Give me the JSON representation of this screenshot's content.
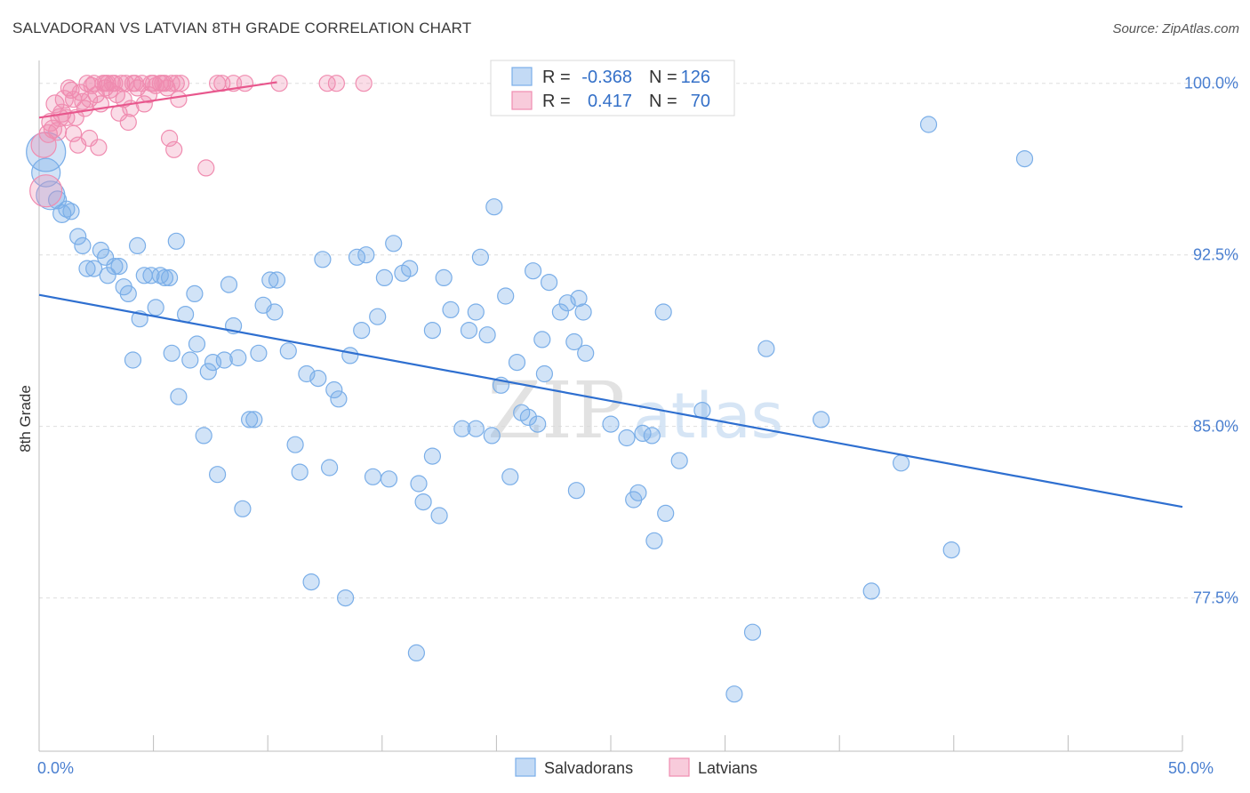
{
  "title": "SALVADORAN VS LATVIAN 8TH GRADE CORRELATION CHART",
  "source": "Source: ZipAtlas.com",
  "watermark": {
    "zip": "ZIP",
    "atlas": "atlas"
  },
  "colors": {
    "blue": "#7aaee8",
    "blue_fill": "rgba(122,174,232,0.35)",
    "blue_line": "#2e6fd0",
    "pink": "#f08cb0",
    "pink_fill": "rgba(240,140,176,0.30)",
    "pink_line": "#e8578d",
    "grid": "#dedede",
    "axis_text": "#4a7fd0"
  },
  "legend": {
    "rows": [
      {
        "r_label": "R =",
        "r_value": "-0.368",
        "n_label": "N =",
        "n_value": "126",
        "series": "blue"
      },
      {
        "r_label": "R =",
        "r_value": "0.417",
        "n_label": "N =",
        "n_value": "70",
        "series": "pink"
      }
    ]
  },
  "chart_data": {
    "type": "scatter",
    "title": "SALVADORAN VS LATVIAN 8TH GRADE CORRELATION CHART",
    "xlabel": "",
    "ylabel": "8th Grade",
    "xlim": [
      0,
      50
    ],
    "ylim": [
      70.8,
      101.0
    ],
    "x_tick_labels": [
      {
        "value": 0,
        "label": "0.0%"
      },
      {
        "value": 50,
        "label": "50.0%"
      }
    ],
    "y_ticks": [
      {
        "value": 100.0,
        "label": "100.0%"
      },
      {
        "value": 92.5,
        "label": "92.5%"
      },
      {
        "value": 85.0,
        "label": "85.0%"
      },
      {
        "value": 77.5,
        "label": "77.5%"
      }
    ],
    "grid": "horizontal dashed",
    "legend_position": "top-center",
    "series": [
      {
        "name": "Salvadorans",
        "color": "#7aaee8",
        "trend": {
          "x": [
            0,
            50
          ],
          "y": [
            90.75,
            81.48
          ]
        },
        "points": [
          [
            0.3,
            97.0,
            22
          ],
          [
            0.3,
            96.1,
            16
          ],
          [
            0.5,
            95.1,
            16
          ],
          [
            0.8,
            94.9,
            10
          ],
          [
            1.0,
            94.3,
            10
          ],
          [
            1.2,
            94.5,
            9
          ],
          [
            1.4,
            94.4,
            9
          ],
          [
            1.7,
            93.3,
            9
          ],
          [
            1.9,
            92.9,
            9
          ],
          [
            2.1,
            91.9,
            9
          ],
          [
            2.4,
            91.9,
            9
          ],
          [
            2.7,
            92.7,
            9
          ],
          [
            2.9,
            92.4,
            9
          ],
          [
            3.0,
            91.6,
            9
          ],
          [
            3.3,
            92.0,
            9
          ],
          [
            3.5,
            92.0,
            9
          ],
          [
            3.7,
            91.1,
            9
          ],
          [
            3.9,
            90.8,
            9
          ],
          [
            4.1,
            87.9,
            9
          ],
          [
            4.3,
            92.9,
            9
          ],
          [
            4.4,
            89.7,
            9
          ],
          [
            4.6,
            91.6,
            9
          ],
          [
            4.9,
            91.6,
            9
          ],
          [
            5.1,
            90.2,
            9
          ],
          [
            5.3,
            91.6,
            9
          ],
          [
            5.5,
            91.5,
            9
          ],
          [
            5.7,
            91.5,
            9
          ],
          [
            5.8,
            88.2,
            9
          ],
          [
            6.0,
            93.1,
            9
          ],
          [
            6.1,
            86.3,
            9
          ],
          [
            6.4,
            89.9,
            9
          ],
          [
            6.6,
            87.9,
            9
          ],
          [
            6.8,
            90.8,
            9
          ],
          [
            6.9,
            88.6,
            9
          ],
          [
            7.2,
            84.6,
            9
          ],
          [
            7.4,
            87.4,
            9
          ],
          [
            7.6,
            87.8,
            9
          ],
          [
            7.8,
            82.9,
            9
          ],
          [
            8.1,
            87.9,
            9
          ],
          [
            8.3,
            91.2,
            9
          ],
          [
            8.5,
            89.4,
            9
          ],
          [
            8.7,
            88.0,
            9
          ],
          [
            8.9,
            81.4,
            9
          ],
          [
            9.2,
            85.3,
            9
          ],
          [
            9.4,
            85.3,
            9
          ],
          [
            9.6,
            88.2,
            9
          ],
          [
            9.8,
            90.3,
            9
          ],
          [
            10.1,
            91.4,
            9
          ],
          [
            10.3,
            90.0,
            9
          ],
          [
            10.4,
            91.4,
            9
          ],
          [
            10.9,
            88.3,
            9
          ],
          [
            11.2,
            84.2,
            9
          ],
          [
            11.4,
            83.0,
            9
          ],
          [
            11.7,
            87.3,
            9
          ],
          [
            11.9,
            78.2,
            9
          ],
          [
            12.2,
            87.1,
            9
          ],
          [
            12.4,
            92.3,
            9
          ],
          [
            12.7,
            83.2,
            9
          ],
          [
            12.9,
            86.6,
            9
          ],
          [
            13.1,
            86.2,
            9
          ],
          [
            13.4,
            77.5,
            9
          ],
          [
            13.6,
            88.1,
            9
          ],
          [
            13.9,
            92.4,
            9
          ],
          [
            14.1,
            89.2,
            9
          ],
          [
            14.3,
            92.5,
            9
          ],
          [
            14.6,
            82.8,
            9
          ],
          [
            14.8,
            89.8,
            9
          ],
          [
            15.1,
            91.5,
            9
          ],
          [
            15.3,
            82.7,
            9
          ],
          [
            15.5,
            93.0,
            9
          ],
          [
            15.9,
            91.7,
            9
          ],
          [
            16.2,
            91.9,
            9
          ],
          [
            16.5,
            75.1,
            9
          ],
          [
            16.6,
            82.5,
            9
          ],
          [
            16.8,
            81.7,
            9
          ],
          [
            17.2,
            83.7,
            9
          ],
          [
            17.2,
            89.2,
            9
          ],
          [
            17.5,
            81.1,
            9
          ],
          [
            17.7,
            91.5,
            9
          ],
          [
            18.0,
            90.1,
            9
          ],
          [
            18.5,
            84.9,
            9
          ],
          [
            18.8,
            89.2,
            9
          ],
          [
            19.1,
            90.0,
            9
          ],
          [
            19.3,
            92.4,
            9
          ],
          [
            19.6,
            89.0,
            9
          ],
          [
            19.1,
            84.9,
            9
          ],
          [
            19.8,
            84.6,
            9
          ],
          [
            19.9,
            94.6,
            9
          ],
          [
            20.2,
            86.8,
            9
          ],
          [
            20.4,
            90.7,
            9
          ],
          [
            20.6,
            82.8,
            9
          ],
          [
            20.9,
            87.8,
            9
          ],
          [
            21.1,
            85.6,
            9
          ],
          [
            21.4,
            85.4,
            9
          ],
          [
            21.6,
            91.8,
            9
          ],
          [
            21.8,
            85.1,
            9
          ],
          [
            22.0,
            88.8,
            9
          ],
          [
            22.3,
            91.3,
            9
          ],
          [
            22.1,
            87.3,
            9
          ],
          [
            22.8,
            90.0,
            9
          ],
          [
            23.1,
            90.4,
            9
          ],
          [
            23.4,
            88.7,
            9
          ],
          [
            23.6,
            90.6,
            9
          ],
          [
            23.8,
            90.0,
            9
          ],
          [
            23.9,
            88.2,
            9
          ],
          [
            25.0,
            85.1,
            9
          ],
          [
            25.7,
            84.5,
            9
          ],
          [
            26.0,
            81.8,
            9
          ],
          [
            26.2,
            82.1,
            9
          ],
          [
            26.4,
            84.7,
            9
          ],
          [
            26.8,
            84.6,
            9
          ],
          [
            26.9,
            80.0,
            9
          ],
          [
            27.3,
            90.0,
            9
          ],
          [
            27.4,
            81.2,
            9
          ],
          [
            28.0,
            83.5,
            9
          ],
          [
            29.0,
            85.7,
            9
          ],
          [
            31.2,
            76.0,
            9
          ],
          [
            31.8,
            88.4,
            9
          ],
          [
            34.2,
            85.3,
            9
          ],
          [
            36.4,
            77.8,
            9
          ],
          [
            37.7,
            83.4,
            9
          ],
          [
            38.9,
            98.2,
            9
          ],
          [
            39.9,
            79.6,
            9
          ],
          [
            43.1,
            96.7,
            9
          ],
          [
            30.4,
            73.3,
            9
          ],
          [
            23.5,
            82.2,
            9
          ]
        ]
      },
      {
        "name": "Latvians",
        "color": "#f08cb0",
        "trend": {
          "x": [
            0,
            10.4
          ],
          "y": [
            98.5,
            100.05
          ]
        },
        "points": [
          [
            0.2,
            97.3,
            14
          ],
          [
            0.3,
            95.3,
            18
          ],
          [
            0.4,
            97.8,
            10
          ],
          [
            0.5,
            98.3,
            10
          ],
          [
            0.6,
            98.0,
            10
          ],
          [
            0.7,
            99.1,
            10
          ],
          [
            0.8,
            97.9,
            10
          ],
          [
            0.9,
            98.5,
            10
          ],
          [
            1.0,
            98.7,
            10
          ],
          [
            1.1,
            99.3,
            10
          ],
          [
            1.2,
            98.5,
            9
          ],
          [
            1.3,
            99.8,
            9
          ],
          [
            1.4,
            99.7,
            9
          ],
          [
            1.5,
            99.3,
            9
          ],
          [
            1.6,
            98.5,
            9
          ],
          [
            1.7,
            97.3,
            9
          ],
          [
            1.8,
            99.6,
            9
          ],
          [
            1.9,
            99.2,
            9
          ],
          [
            2.0,
            98.9,
            9
          ],
          [
            2.1,
            100.0,
            9
          ],
          [
            2.2,
            99.3,
            9
          ],
          [
            2.3,
            99.9,
            9
          ],
          [
            2.4,
            100.0,
            9
          ],
          [
            2.5,
            99.5,
            9
          ],
          [
            2.6,
            97.2,
            9
          ],
          [
            2.7,
            99.1,
            9
          ],
          [
            2.8,
            100.0,
            9
          ],
          [
            2.9,
            99.8,
            9
          ],
          [
            3.0,
            100.0,
            9
          ],
          [
            3.1,
            99.7,
            9
          ],
          [
            3.2,
            100.0,
            9
          ],
          [
            3.3,
            100.0,
            9
          ],
          [
            3.4,
            99.5,
            9
          ],
          [
            3.5,
            98.7,
            9
          ],
          [
            3.6,
            100.0,
            9
          ],
          [
            3.7,
            99.3,
            9
          ],
          [
            3.8,
            100.0,
            9
          ],
          [
            3.9,
            98.3,
            9
          ],
          [
            4.0,
            98.9,
            9
          ],
          [
            4.2,
            100.0,
            9
          ],
          [
            4.3,
            99.8,
            9
          ],
          [
            4.5,
            100.0,
            9
          ],
          [
            4.6,
            99.1,
            9
          ],
          [
            4.8,
            99.5,
            9
          ],
          [
            4.9,
            100.0,
            9
          ],
          [
            5.0,
            100.0,
            9
          ],
          [
            5.1,
            99.9,
            9
          ],
          [
            5.3,
            100.0,
            9
          ],
          [
            5.4,
            100.0,
            9
          ],
          [
            5.5,
            100.0,
            9
          ],
          [
            5.6,
            99.8,
            9
          ],
          [
            5.8,
            100.0,
            9
          ],
          [
            5.7,
            97.6,
            9
          ],
          [
            5.9,
            97.1,
            9
          ],
          [
            6.0,
            100.0,
            9
          ],
          [
            6.2,
            100.0,
            9
          ],
          [
            6.1,
            99.3,
            9
          ],
          [
            7.3,
            96.3,
            9
          ],
          [
            7.8,
            100.0,
            9
          ],
          [
            8.0,
            100.0,
            9
          ],
          [
            8.5,
            100.0,
            9
          ],
          [
            9.0,
            100.0,
            9
          ],
          [
            10.5,
            100.0,
            9
          ],
          [
            12.6,
            100.0,
            9
          ],
          [
            13.0,
            100.0,
            9
          ],
          [
            14.2,
            100.0,
            9
          ],
          [
            1.5,
            97.8,
            9
          ],
          [
            2.2,
            97.6,
            9
          ],
          [
            2.9,
            100.0,
            9
          ],
          [
            4.1,
            100.0,
            9
          ]
        ]
      }
    ]
  },
  "bottom_legend": [
    {
      "label": "Salvadorans",
      "series": "blue"
    },
    {
      "label": "Latvians",
      "series": "pink"
    }
  ]
}
